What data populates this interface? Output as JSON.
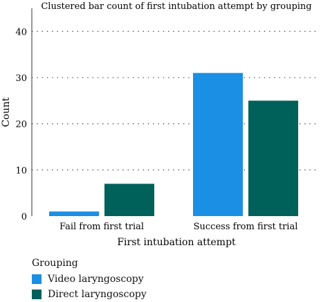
{
  "chart_data": {
    "type": "bar",
    "title": "Clustered bar count of first intubation attempt by grouping",
    "xlabel": "First intubation attempt",
    "ylabel": "Count",
    "categories": [
      "Fail from first trial",
      "Success from first trial"
    ],
    "series": [
      {
        "name": "Video laryngoscopy",
        "values": [
          1,
          31
        ],
        "color": "#1a8fe3"
      },
      {
        "name": "Direct laryngoscopy",
        "values": [
          7,
          25
        ],
        "color": "#00605a"
      }
    ],
    "ylim": [
      0,
      45
    ],
    "yticks": [
      "0",
      "10",
      "20",
      "30",
      "40"
    ],
    "grid": "horizontal dotted",
    "legend": {
      "title": "Grouping",
      "placement": "bottom-left"
    }
  }
}
